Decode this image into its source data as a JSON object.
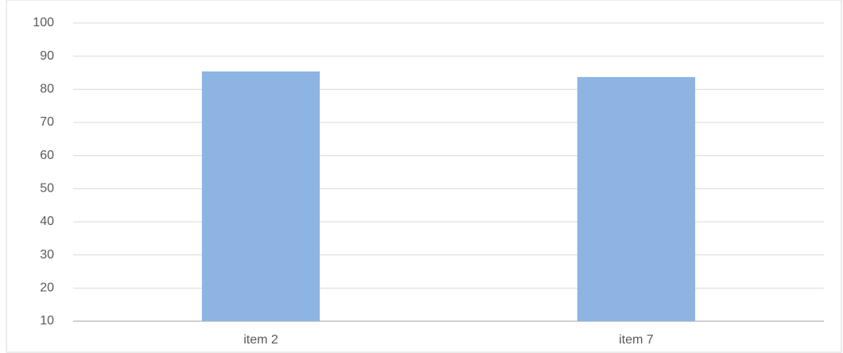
{
  "chart_data": {
    "type": "bar",
    "categories": [
      "item 2",
      "item 7"
    ],
    "values": [
      85.4,
      83.7
    ],
    "color": "#8db4e2",
    "ylim": [
      10,
      100
    ],
    "yticks": [
      10,
      20,
      30,
      40,
      50,
      60,
      70,
      80,
      90,
      100
    ],
    "grid": true
  }
}
